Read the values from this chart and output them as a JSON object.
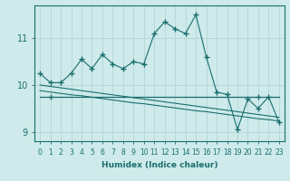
{
  "title": "",
  "xlabel": "Humidex (Indice chaleur)",
  "ylabel": "",
  "background_color": "#ceeaea",
  "grid_color": "#b8d8d8",
  "line_color": "#1a6e6e",
  "x_values": [
    0,
    1,
    2,
    3,
    4,
    5,
    6,
    7,
    8,
    9,
    10,
    11,
    12,
    13,
    14,
    15,
    16,
    17,
    18,
    19,
    20,
    21,
    22,
    23
  ],
  "y_main": [
    10.25,
    10.05,
    10.05,
    10.25,
    10.55,
    10.35,
    10.65,
    10.45,
    10.35,
    10.5,
    10.45,
    11.1,
    11.35,
    11.2,
    11.1,
    11.5,
    10.6,
    9.85,
    9.8,
    9.05,
    9.7,
    9.5,
    9.75,
    9.2
  ],
  "y_flat": [
    9.75,
    9.75,
    9.75,
    9.75,
    9.75,
    9.75,
    9.75,
    9.75,
    9.75,
    9.75,
    9.75,
    9.75,
    9.75,
    9.75,
    9.75,
    9.75,
    9.75,
    9.75,
    9.75,
    9.75,
    9.75,
    9.75,
    9.75,
    9.75
  ],
  "y_trend1": [
    10.0,
    9.97,
    9.94,
    9.91,
    9.88,
    9.85,
    9.82,
    9.79,
    9.76,
    9.73,
    9.7,
    9.67,
    9.64,
    9.61,
    9.58,
    9.55,
    9.52,
    9.49,
    9.46,
    9.43,
    9.4,
    9.37,
    9.34,
    9.31
  ],
  "y_trend2": [
    9.88,
    9.85,
    9.82,
    9.79,
    9.77,
    9.74,
    9.71,
    9.68,
    9.65,
    9.62,
    9.6,
    9.57,
    9.54,
    9.51,
    9.48,
    9.45,
    9.43,
    9.4,
    9.37,
    9.34,
    9.31,
    9.28,
    9.26,
    9.23
  ],
  "ylim": [
    8.8,
    11.7
  ],
  "yticks": [
    9,
    10,
    11
  ],
  "xticks": [
    0,
    1,
    2,
    3,
    4,
    5,
    6,
    7,
    8,
    9,
    10,
    11,
    12,
    13,
    14,
    15,
    16,
    17,
    18,
    19,
    20,
    21,
    22,
    23
  ]
}
